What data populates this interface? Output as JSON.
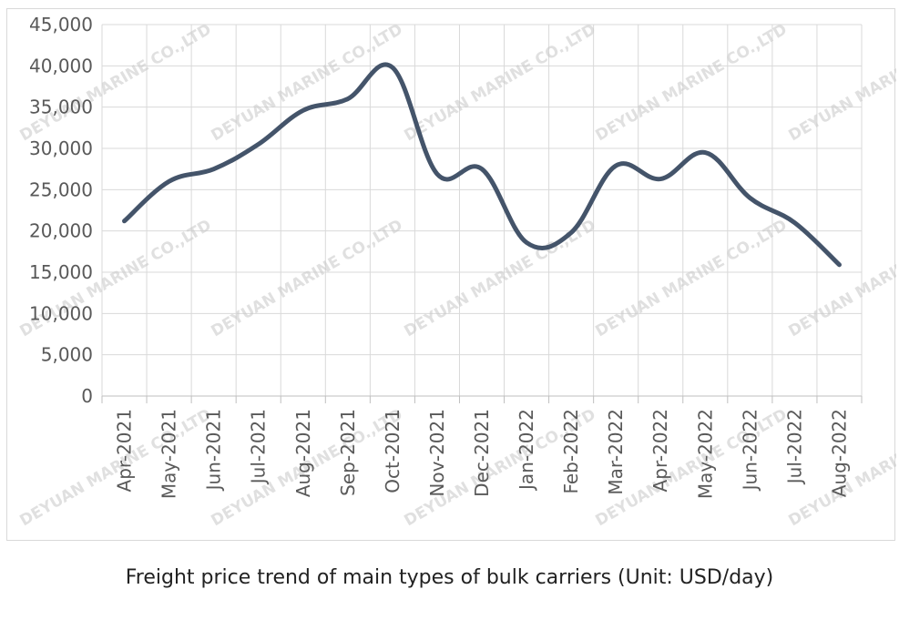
{
  "caption": "Freight price trend of main types of bulk carriers (Unit: USD/day)",
  "watermark": "DEYUAN MARINE CO.,LTD",
  "chart_data": {
    "type": "line",
    "categories": [
      "Apr-2021",
      "May-2021",
      "Jun-2021",
      "Jul-2021",
      "Aug-2021",
      "Sep-2021",
      "Oct-2021",
      "Nov-2021",
      "Dec-2021",
      "Jan-2022",
      "Feb-2022",
      "Mar-2022",
      "Apr-2022",
      "May-2022",
      "Jun-2022",
      "Jul-2022",
      "Aug-2022"
    ],
    "series": [
      {
        "values": [
          21200,
          26000,
          27500,
          30500,
          34600,
          36000,
          39800,
          26900,
          27500,
          18600,
          19800,
          27900,
          26300,
          29500,
          24000,
          21000,
          15900
        ]
      }
    ],
    "ylim": [
      0,
      45000
    ],
    "yticks": [
      0,
      5000,
      10000,
      15000,
      20000,
      25000,
      30000,
      35000,
      40000,
      45000
    ],
    "ytick_labels": [
      "0",
      "5,000",
      "10,000",
      "15,000",
      "20,000",
      "25,000",
      "30,000",
      "35,000",
      "40,000",
      "45,000"
    ],
    "grid": true,
    "line_color": "#44546a",
    "grid_color": "#d9d9d9"
  }
}
